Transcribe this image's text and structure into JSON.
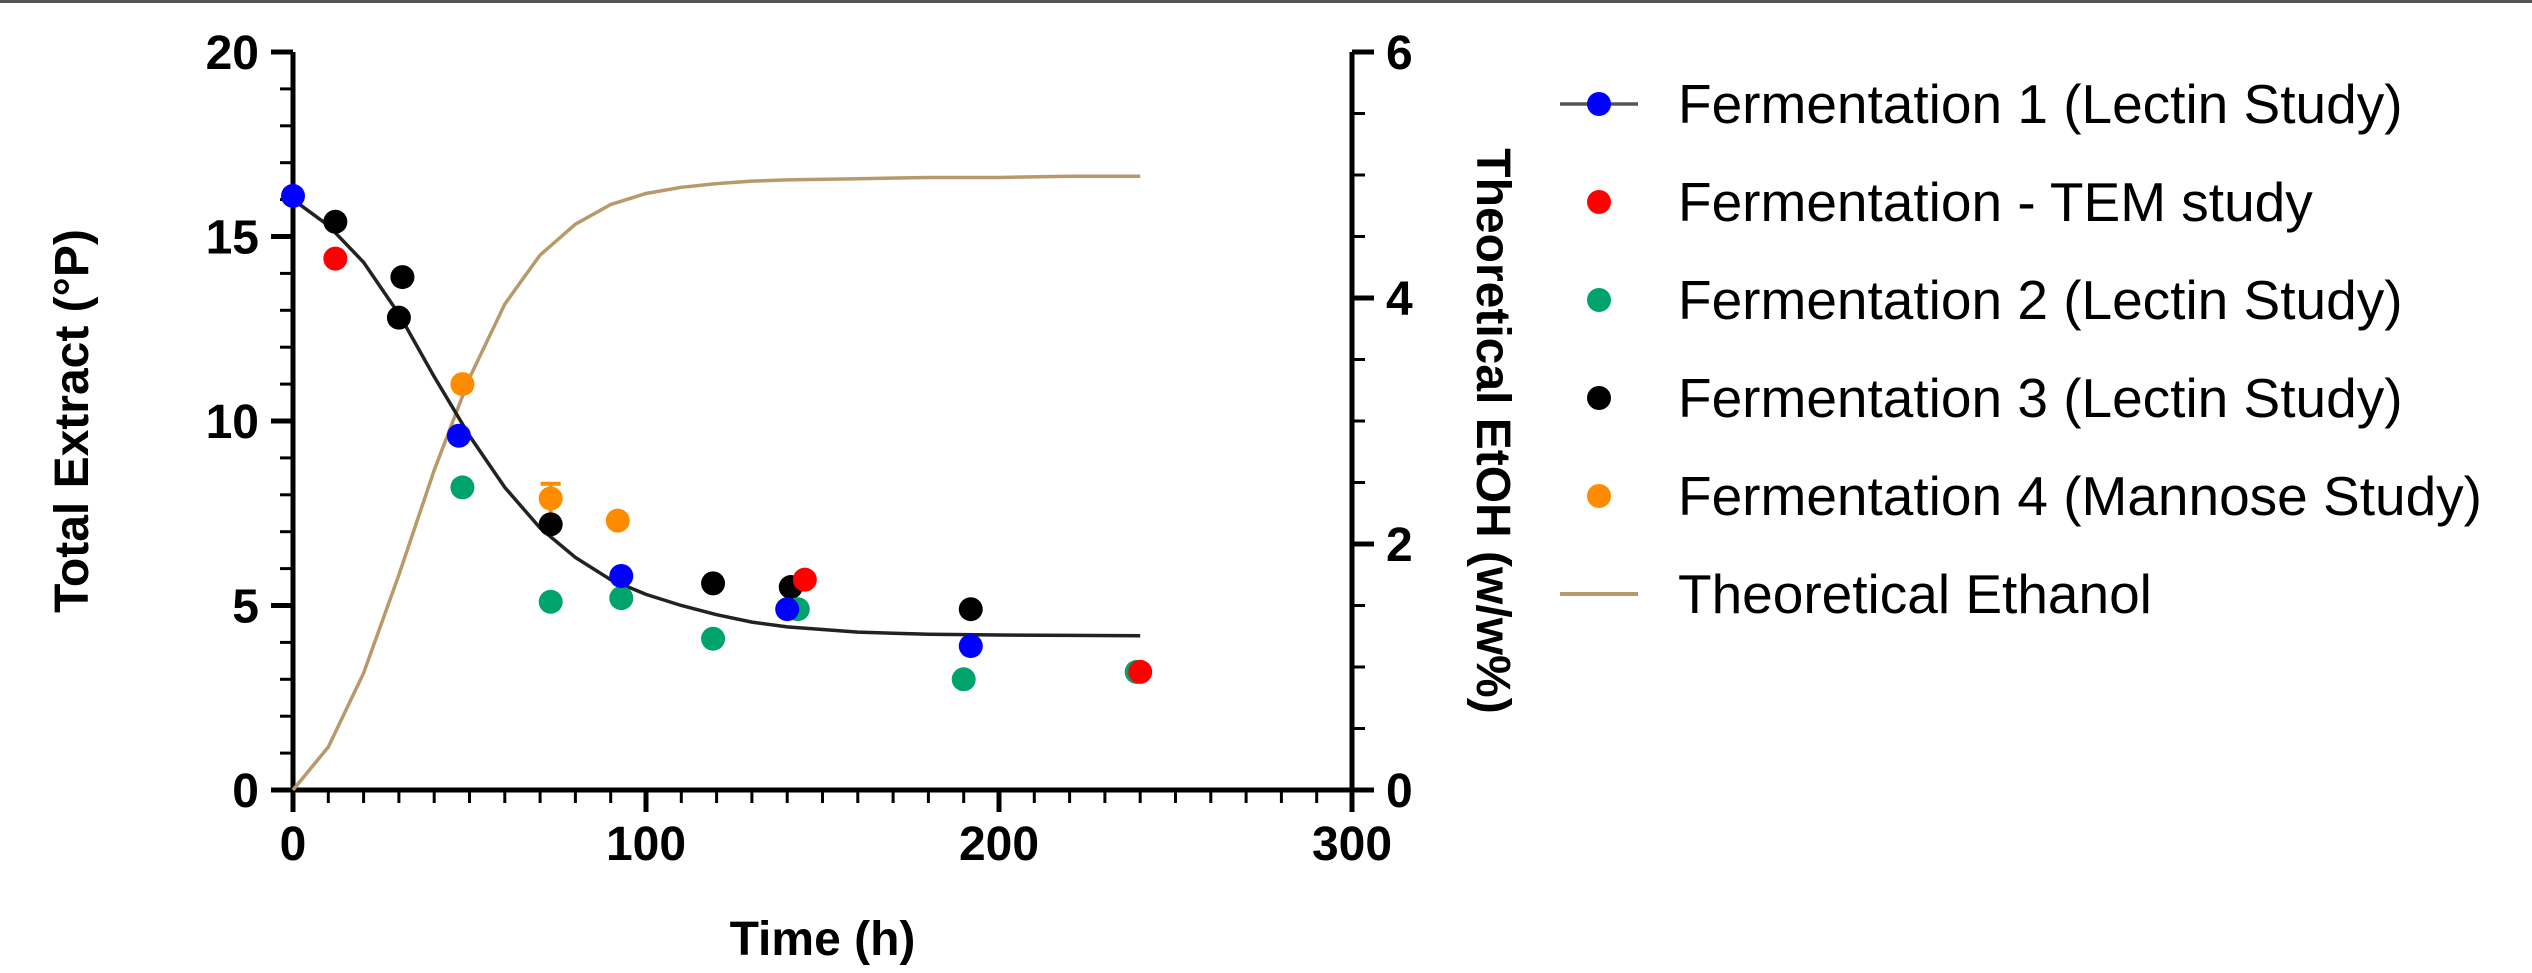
{
  "chart_data": {
    "type": "scatter",
    "title": "",
    "xlabel": "Time (h)",
    "ylabel_left": "Total  Extract (°P)",
    "ylabel_right": "Theoretical EtOH (w/w%)",
    "xlim": [
      0,
      300
    ],
    "ylim_left": [
      0,
      20
    ],
    "ylim_right": [
      0,
      6
    ],
    "x_ticks": [
      "0",
      "100",
      "200",
      "300"
    ],
    "y_left_ticks": [
      "0",
      "5",
      "10",
      "15",
      "20"
    ],
    "y_right_ticks": [
      "0",
      "2",
      "4",
      "6"
    ],
    "grid": false,
    "legend_position": "right",
    "series": [
      {
        "name": "Fermentation 1 (Lectin Study)",
        "color": "#0000ff",
        "marker": "circle",
        "legend_line": true,
        "x": [
          0,
          47,
          93,
          140,
          192
        ],
        "y": [
          16.1,
          9.6,
          5.8,
          4.9,
          3.9
        ]
      },
      {
        "name": "Fermentation - TEM study",
        "color": "#ff0000",
        "marker": "circle",
        "x": [
          12,
          145,
          240
        ],
        "y": [
          14.4,
          5.7,
          3.2
        ]
      },
      {
        "name": "Fermentation 2 (Lectin Study)",
        "color": "#00a36c",
        "marker": "circle",
        "x": [
          48,
          73,
          93,
          119,
          143,
          190,
          239
        ],
        "y": [
          8.2,
          5.1,
          5.2,
          4.1,
          4.9,
          3.0,
          3.2
        ]
      },
      {
        "name": "Fermentation 3 (Lectin Study)",
        "color": "#000000",
        "marker": "circle",
        "x": [
          12,
          30,
          31,
          73,
          119,
          141,
          192
        ],
        "y": [
          15.4,
          12.8,
          13.9,
          7.2,
          5.6,
          5.5,
          4.9
        ]
      },
      {
        "name": "Fermentation 4 (Mannose Study)",
        "color": "#ff8c00",
        "marker": "circle",
        "x": [
          48,
          73,
          92
        ],
        "y": [
          11.0,
          7.9,
          7.3
        ],
        "error": [
          0,
          0.4,
          0
        ]
      },
      {
        "name": "Theoretical Ethanol",
        "color": "#b89a6a",
        "type": "line",
        "axis": "right",
        "x": [
          0,
          10,
          20,
          30,
          40,
          50,
          60,
          70,
          80,
          90,
          100,
          110,
          120,
          130,
          140,
          160,
          180,
          200,
          220,
          240
        ],
        "y": [
          0.0,
          0.35,
          0.95,
          1.75,
          2.6,
          3.35,
          3.95,
          4.35,
          4.6,
          4.76,
          4.85,
          4.9,
          4.93,
          4.95,
          4.96,
          4.97,
          4.98,
          4.98,
          4.99,
          4.99
        ]
      }
    ],
    "fit_curve": {
      "color": "#222222",
      "axis": "left",
      "x": [
        0,
        10,
        20,
        30,
        40,
        50,
        60,
        70,
        80,
        90,
        100,
        110,
        120,
        130,
        140,
        160,
        180,
        200,
        220,
        240
      ],
      "y": [
        16.0,
        15.3,
        14.3,
        12.9,
        11.2,
        9.6,
        8.2,
        7.1,
        6.3,
        5.7,
        5.3,
        5.0,
        4.75,
        4.55,
        4.42,
        4.28,
        4.22,
        4.2,
        4.19,
        4.18
      ]
    }
  }
}
